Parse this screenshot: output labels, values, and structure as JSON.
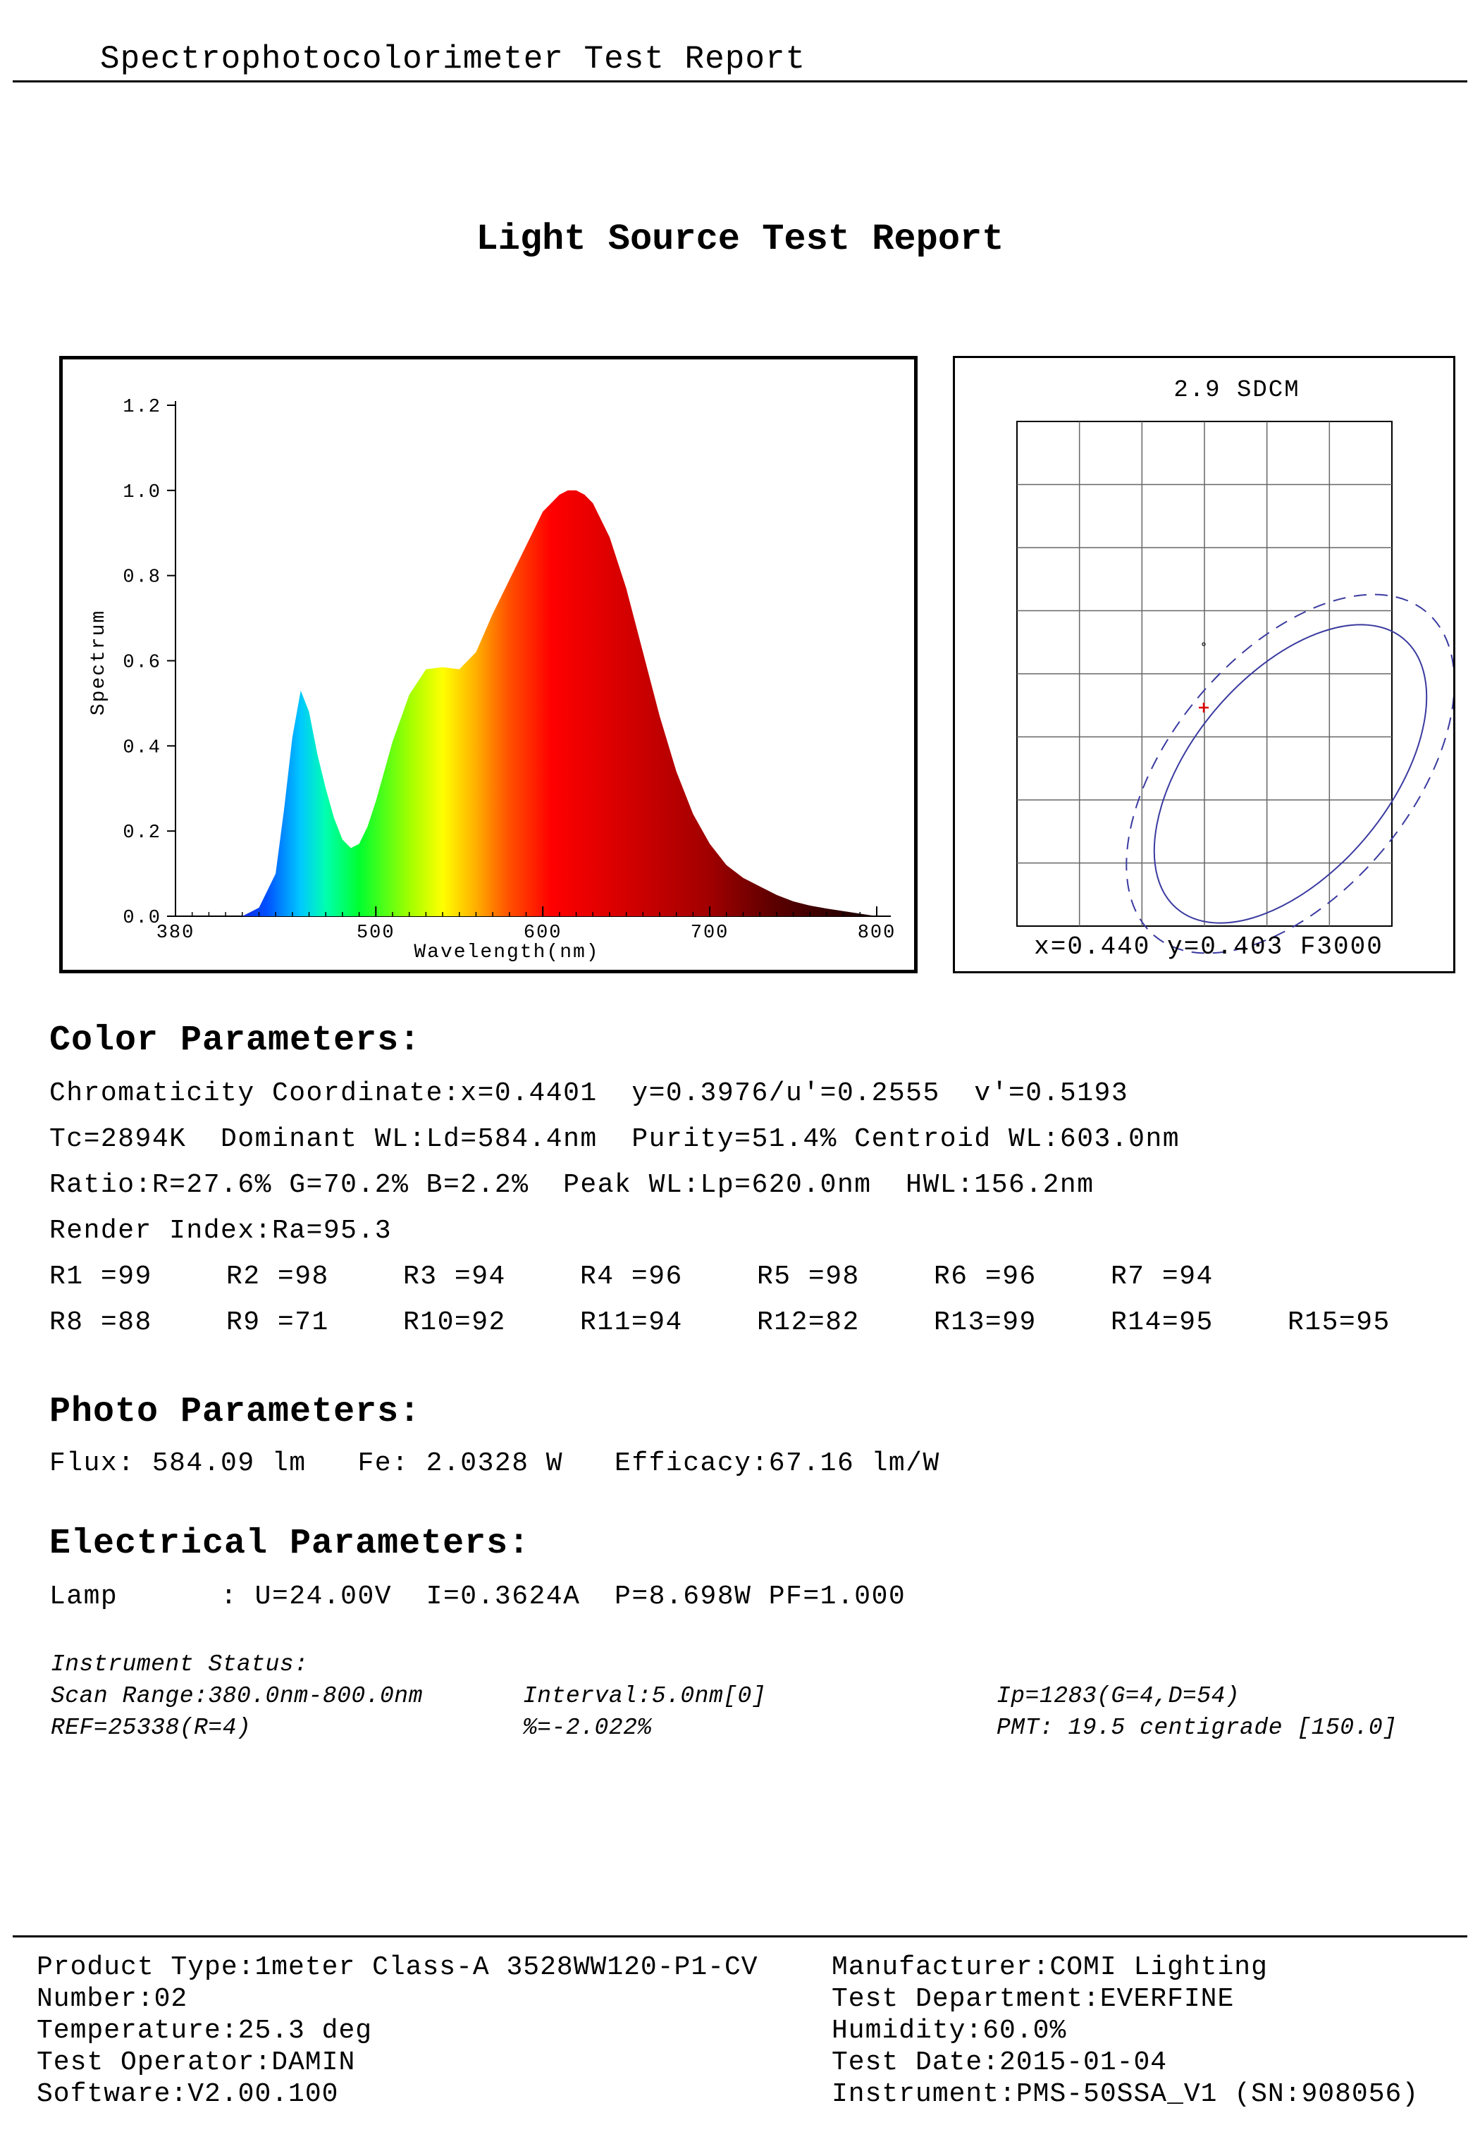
{
  "header": {
    "title": "Spectrophotocolorimeter Test Report"
  },
  "report_title": "Light Source Test Report",
  "spectrum_chart": {
    "chart_data": {
      "type": "area",
      "xlabel": "Wavelength(nm)",
      "ylabel": "Spectrum",
      "xlim": [
        380,
        800
      ],
      "ylim": [
        0,
        1.2
      ],
      "x_ticks": [
        "380",
        "500",
        "600",
        "700",
        "800"
      ],
      "y_ticks": [
        "0.0",
        "0.2",
        "0.4",
        "0.6",
        "0.8",
        "1.0",
        "1.2"
      ],
      "x": [
        420,
        430,
        440,
        445,
        450,
        455,
        460,
        465,
        470,
        475,
        480,
        485,
        490,
        495,
        500,
        510,
        520,
        530,
        540,
        550,
        560,
        570,
        580,
        590,
        600,
        610,
        615,
        620,
        625,
        630,
        640,
        650,
        660,
        670,
        680,
        690,
        700,
        710,
        720,
        730,
        740,
        750,
        760,
        770,
        780,
        790,
        800
      ],
      "values": [
        0.0,
        0.02,
        0.1,
        0.25,
        0.42,
        0.53,
        0.48,
        0.38,
        0.3,
        0.23,
        0.18,
        0.16,
        0.17,
        0.21,
        0.27,
        0.41,
        0.52,
        0.58,
        0.585,
        0.58,
        0.62,
        0.71,
        0.79,
        0.87,
        0.95,
        0.99,
        1.0,
        1.0,
        0.99,
        0.97,
        0.89,
        0.77,
        0.62,
        0.47,
        0.34,
        0.24,
        0.17,
        0.12,
        0.09,
        0.07,
        0.05,
        0.035,
        0.025,
        0.018,
        0.012,
        0.006,
        0.0
      ]
    }
  },
  "chromaticity_chart": {
    "title": "2.9 SDCM",
    "caption": "x=0.440 y=0.403 F3000"
  },
  "color_params": {
    "heading": "Color Parameters:",
    "line1": "Chromaticity Coordinate:x=0.4401  y=0.3976/u'=0.2555  v'=0.5193",
    "line2": "Tc=2894K  Dominant WL:Ld=584.4nm  Purity=51.4% Centroid WL:603.0nm",
    "line3": "Ratio:R=27.6% G=70.2% B=2.2%  Peak WL:Lp=620.0nm  HWL:156.2nm",
    "line4": "Render Index:Ra=95.3",
    "r_row1": [
      "R1 =99",
      "R2 =98",
      "R3 =94",
      "R4 =96",
      "R5 =98",
      "R6 =96",
      "R7 =94"
    ],
    "r_row2": [
      "R8 =88",
      "R9 =71",
      "R10=92",
      "R11=94",
      "R12=82",
      "R13=99",
      "R14=95",
      "R15=95"
    ]
  },
  "photo_params": {
    "heading": "Photo Parameters:",
    "line1": "Flux: 584.09 lm   Fe: 2.0328 W   Efficacy:67.16 lm/W"
  },
  "electrical_params": {
    "heading": "Electrical Parameters:",
    "line1": "Lamp      : U=24.00V  I=0.3624A  P=8.698W PF=1.000"
  },
  "instrument": {
    "heading": "Instrument Status:",
    "scan_range": "Scan Range:380.0nm-800.0nm",
    "interval": "Interval:5.0nm[0]",
    "ip": "Ip=1283(G=4,D=54)",
    "ref": "REF=25338(R=4)",
    "percent": "%=-2.022%",
    "pmt": "PMT: 19.5 centigrade [150.0]"
  },
  "footer": {
    "left": [
      "Product Type:1meter Class-A 3528WW120-P1-CV",
      "Number:02",
      "Temperature:25.3 deg",
      "Test Operator:DAMIN",
      "Software:V2.00.100"
    ],
    "right": [
      "Manufacturer:COMI Lighting",
      "Test Department:EVERFINE",
      "Humidity:60.0%",
      "Test Date:2015-01-04",
      "Instrument:PMS-50SSA_V1 (SN:908056)"
    ]
  }
}
